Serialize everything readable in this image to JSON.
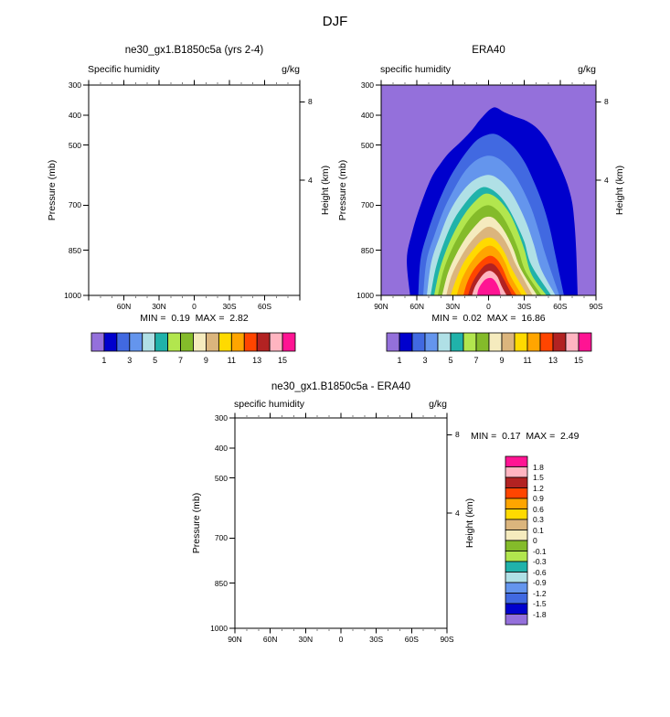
{
  "page": {
    "title": "DJF"
  },
  "palette": [
    "#9470DB",
    "#0000CD",
    "#4169E1",
    "#6495ED",
    "#B0E0E6",
    "#20B2AA",
    "#B2E64E",
    "#84BB2A",
    "#F5EBBE",
    "#DBB57D",
    "#FFDA00",
    "#FFA500",
    "#FF4500",
    "#B22222",
    "#FFB5C1",
    "#FF1493"
  ],
  "colorbar_tick_labels": [
    "1",
    "3",
    "5",
    "7",
    "9",
    "11",
    "13",
    "15"
  ],
  "axes": {
    "pressure_label": "Pressure (mb)",
    "height_label": "Height (km)",
    "pressure_ticks": [
      "300",
      "400",
      "500",
      "700",
      "850",
      "1000"
    ],
    "pressure_tick_values": [
      300,
      400,
      500,
      700,
      850,
      1000
    ],
    "height_ticks": [
      {
        "label": "8",
        "mb": 356
      },
      {
        "label": "4",
        "mb": 616
      }
    ],
    "lat_ticks": [
      {
        "label": "90N",
        "v": 90
      },
      {
        "label": "60N",
        "v": 60
      },
      {
        "label": "30N",
        "v": 30
      },
      {
        "label": "0",
        "v": 0
      },
      {
        "label": "30S",
        "v": -30
      },
      {
        "label": "60S",
        "v": -60
      },
      {
        "label": "90S",
        "v": -90
      }
    ],
    "lat_minor_values": [
      80,
      70,
      50,
      40,
      20,
      10,
      -10,
      -20,
      -40,
      -50,
      -70,
      -80
    ]
  },
  "panels": {
    "model": {
      "title": "ne30_gx1.B1850c5a (yrs 2-4)",
      "var_label": "Specific humidity",
      "units": "g/kg",
      "stats": "MIN =  0.19  MAX =  2.82",
      "x_labels_shown": [
        "60N",
        "30N",
        "0",
        "30S",
        "60S"
      ]
    },
    "era40": {
      "title": "ERA40",
      "var_label": "specific humidity",
      "units": "g/kg",
      "stats": "MIN =  0.02  MAX =  16.86"
    },
    "diff": {
      "title": "ne30_gx1.B1850c5a - ERA40",
      "var_label": "specific humidity",
      "units": "g/kg",
      "stats": "MIN =  0.17  MAX =  2.49",
      "legend_labels": [
        "1.8",
        "1.5",
        "1.2",
        "0.9",
        "0.6",
        "0.3",
        "0.1",
        "0",
        "-0.1",
        "-0.3",
        "-0.6",
        "-0.9",
        "-1.2",
        "-1.5",
        "-1.8"
      ]
    }
  },
  "chart_data": [
    {
      "id": "model",
      "type": "contour",
      "season": "DJF",
      "title": "ne30_gx1.B1850c5a (yrs 2-4)",
      "variable": "Specific humidity",
      "units": "g/kg",
      "xaxis": "latitude",
      "x_range": [
        90,
        -90
      ],
      "yaxis": "pressure (mb)",
      "y_range": [
        300,
        1000
      ],
      "min": 0.19,
      "max": 2.82,
      "bands": []
    },
    {
      "id": "era40",
      "type": "contour_filled",
      "season": "DJF",
      "title": "ERA40",
      "variable": "specific humidity",
      "units": "g/kg",
      "xaxis": "latitude",
      "x_range": [
        90,
        -90
      ],
      "yaxis": "pressure (mb)",
      "y_range": [
        300,
        1000
      ],
      "min": 0.02,
      "max": 16.86,
      "contour_levels": [
        1,
        2,
        3,
        4,
        5,
        6,
        7,
        8,
        9,
        10,
        11,
        12,
        13,
        14,
        15
      ],
      "background_level": 0,
      "bands": [
        {
          "level": 1,
          "points": [
            [
              65.7,
              1000
            ],
            [
              68.5,
              880
            ],
            [
              64,
              790
            ],
            [
              57,
              700
            ],
            [
              48,
              610
            ],
            [
              40,
              560
            ],
            [
              33,
              525
            ],
            [
              25,
              495
            ],
            [
              15,
              455
            ],
            [
              6,
              410
            ],
            [
              -4,
              375
            ],
            [
              -13,
              390
            ],
            [
              -22,
              405
            ],
            [
              -32,
              420
            ],
            [
              -41,
              445
            ],
            [
              -49,
              485
            ],
            [
              -55,
              530
            ],
            [
              -60,
              570
            ],
            [
              -66,
              630
            ],
            [
              -70,
              690
            ],
            [
              -72,
              760
            ],
            [
              -73.5,
              860
            ],
            [
              -74.7,
              1000
            ]
          ]
        },
        {
          "level": 2,
          "points": [
            [
              58.9,
              1000
            ],
            [
              57,
              880
            ],
            [
              51,
              790
            ],
            [
              43,
              700
            ],
            [
              34,
              620
            ],
            [
              26,
              565
            ],
            [
              17,
              515
            ],
            [
              8,
              478
            ],
            [
              -4,
              462
            ],
            [
              -14,
              482
            ],
            [
              -23,
              515
            ],
            [
              -31,
              562
            ],
            [
              -38,
              622
            ],
            [
              -45,
              692
            ],
            [
              -51,
              772
            ],
            [
              -56,
              865
            ],
            [
              -63.2,
              1000
            ]
          ]
        },
        {
          "level": 3,
          "points": [
            [
              54.8,
              1000
            ],
            [
              52,
              885
            ],
            [
              45,
              795
            ],
            [
              37,
              710
            ],
            [
              28,
              640
            ],
            [
              20,
              588
            ],
            [
              11,
              552
            ],
            [
              2,
              536
            ],
            [
              -6,
              540
            ],
            [
              -14,
              562
            ],
            [
              -22,
              600
            ],
            [
              -29,
              650
            ],
            [
              -36,
              712
            ],
            [
              -42,
              785
            ],
            [
              -48,
              868
            ],
            [
              -59.4,
              1000
            ]
          ]
        },
        {
          "level": 4,
          "points": [
            [
              51.7,
              1000
            ],
            [
              48,
              890
            ],
            [
              41,
              805
            ],
            [
              33,
              725
            ],
            [
              24,
              665
            ],
            [
              15,
              625
            ],
            [
              6,
              604
            ],
            [
              -2,
              600
            ],
            [
              -10,
              618
            ],
            [
              -18,
              652
            ],
            [
              -25,
              700
            ],
            [
              -32,
              762
            ],
            [
              -38,
              832
            ],
            [
              -44,
              912
            ],
            [
              -56.1,
              1000
            ]
          ]
        },
        {
          "level": 5,
          "points": [
            [
              48.6,
              1000
            ],
            [
              44,
              905
            ],
            [
              37,
              820
            ],
            [
              29,
              748
            ],
            [
              20,
              695
            ],
            [
              12,
              658
            ],
            [
              5,
              640
            ],
            [
              -2,
              646
            ],
            [
              -9,
              668
            ],
            [
              -16,
              705
            ],
            [
              -23,
              758
            ],
            [
              -30,
              822
            ],
            [
              -36,
              900
            ],
            [
              -52.5,
              1000
            ]
          ]
        },
        {
          "level": 6,
          "points": [
            [
              45.6,
              1000
            ],
            [
              41,
              915
            ],
            [
              34,
              835
            ],
            [
              26,
              768
            ],
            [
              18,
              718
            ],
            [
              10,
              682
            ],
            [
              3,
              662
            ],
            [
              -4,
              668
            ],
            [
              -11,
              692
            ],
            [
              -18,
              730
            ],
            [
              -24,
              782
            ],
            [
              -30,
              848
            ],
            [
              -36,
              930
            ],
            [
              -48.6,
              1000
            ]
          ]
        },
        {
          "level": 7,
          "points": [
            [
              42.5,
              1000
            ],
            [
              38,
              920
            ],
            [
              31,
              848
            ],
            [
              23,
              788
            ],
            [
              15,
              740
            ],
            [
              7,
              710
            ],
            [
              0,
              700
            ],
            [
              -7,
              715
            ],
            [
              -13,
              745
            ],
            [
              -19,
              790
            ],
            [
              -25,
              848
            ],
            [
              -31,
              920
            ],
            [
              -44.5,
              1000
            ]
          ]
        },
        {
          "level": 8,
          "points": [
            [
              38.9,
              1000
            ],
            [
              34,
              925
            ],
            [
              27,
              862
            ],
            [
              19,
              808
            ],
            [
              11,
              768
            ],
            [
              4,
              742
            ],
            [
              -3,
              740
            ],
            [
              -9,
              762
            ],
            [
              -15,
              798
            ],
            [
              -21,
              848
            ],
            [
              -27,
              912
            ],
            [
              -40.7,
              1000
            ]
          ]
        },
        {
          "level": 9,
          "points": [
            [
              35.4,
              1000
            ],
            [
              31,
              935
            ],
            [
              24,
              878
            ],
            [
              16,
              828
            ],
            [
              8,
              792
            ],
            [
              1,
              772
            ],
            [
              -5,
              778
            ],
            [
              -11,
              802
            ],
            [
              -17,
              842
            ],
            [
              -23,
              898
            ],
            [
              -36.9,
              1000
            ]
          ]
        },
        {
          "level": 10,
          "points": [
            [
              31.8,
              1000
            ],
            [
              27,
              945
            ],
            [
              21,
              892
            ],
            [
              13,
              848
            ],
            [
              5,
              815
            ],
            [
              -2,
              808
            ],
            [
              -8,
              825
            ],
            [
              -14,
              862
            ],
            [
              -20,
              915
            ],
            [
              -32.6,
              1000
            ]
          ]
        },
        {
          "level": 11,
          "points": [
            [
              26.7,
              1000
            ],
            [
              23,
              952
            ],
            [
              17,
              905
            ],
            [
              10,
              866
            ],
            [
              3,
              840
            ],
            [
              -3,
              836
            ],
            [
              -9,
              856
            ],
            [
              -14,
              892
            ],
            [
              -19,
              940
            ],
            [
              -28,
              1000
            ]
          ]
        },
        {
          "level": 12,
          "points": [
            [
              21.1,
              1000
            ],
            [
              18,
              958
            ],
            [
              13,
              918
            ],
            [
              6,
              885
            ],
            [
              -1,
              868
            ],
            [
              -7,
              880
            ],
            [
              -12,
              912
            ],
            [
              -17,
              958
            ],
            [
              -23.6,
              1000
            ]
          ]
        },
        {
          "level": 13,
          "points": [
            [
              17.2,
              1000
            ],
            [
              14,
              962
            ],
            [
              9,
              928
            ],
            [
              3,
              900
            ],
            [
              -3,
              894
            ],
            [
              -8,
              912
            ],
            [
              -13,
              948
            ],
            [
              -19.8,
              1000
            ]
          ]
        },
        {
          "level": 14,
          "points": [
            [
              13.9,
              1000
            ],
            [
              11,
              968
            ],
            [
              5,
              932
            ],
            [
              -1,
              918
            ],
            [
              -7,
              935
            ],
            [
              -11,
              970
            ],
            [
              -15.2,
              1000
            ]
          ]
        },
        {
          "level": 15,
          "points": [
            [
              9.6,
              1000
            ],
            [
              8,
              975
            ],
            [
              3,
              948
            ],
            [
              -2,
              942
            ],
            [
              -6,
              955
            ],
            [
              -9,
              980
            ],
            [
              -10.1,
              1000
            ]
          ]
        }
      ]
    },
    {
      "id": "diff",
      "type": "contour",
      "season": "DJF",
      "title": "ne30_gx1.B1850c5a - ERA40",
      "variable": "specific humidity",
      "units": "g/kg",
      "xaxis": "latitude",
      "x_range": [
        90,
        -90
      ],
      "yaxis": "pressure (mb)",
      "y_range": [
        300,
        1000
      ],
      "min": 0.17,
      "max": 2.49,
      "contour_levels": [
        1.8,
        1.5,
        1.2,
        0.9,
        0.6,
        0.3,
        0.1,
        0,
        -0.1,
        -0.3,
        -0.6,
        -0.9,
        -1.2,
        -1.5,
        -1.8
      ],
      "bands": []
    }
  ]
}
